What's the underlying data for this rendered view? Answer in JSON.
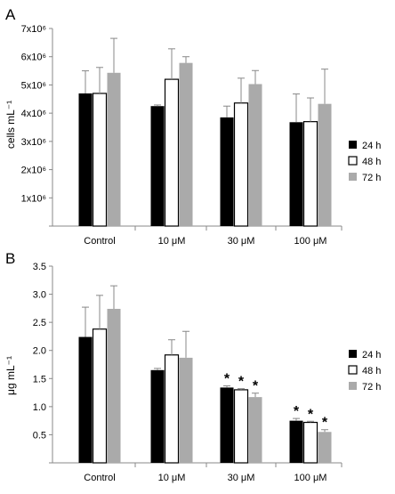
{
  "figure": {
    "panels": [
      {
        "panel_label": "A",
        "ylabel": "cells mL⁻¹",
        "tick_labels": [
          "1x10⁶",
          "2x10⁶",
          "3x10⁶",
          "4x10⁶",
          "5x10⁶",
          "6x10⁶",
          "7x10⁶"
        ],
        "legend": [
          "24 h",
          "48 h",
          "72 h"
        ]
      },
      {
        "panel_label": "B",
        "ylabel": "μg mL⁻¹",
        "tick_labels": [
          "0.5",
          "1.0",
          "1.5",
          "2.0",
          "2.5",
          "3.0",
          "3.5"
        ],
        "legend": [
          "24 h",
          "48 h",
          "72 h"
        ]
      }
    ]
  },
  "chart_data": [
    {
      "type": "bar",
      "title": "",
      "xlabel": "",
      "ylabel": "cells mL⁻¹",
      "categories": [
        "Control",
        "10 μM",
        "30 μM",
        "100 μM"
      ],
      "yticks": [
        0,
        1000000,
        2000000,
        3000000,
        4000000,
        5000000,
        6000000,
        7000000
      ],
      "ylim": [
        0,
        7000000
      ],
      "grid": false,
      "legend_position": "right",
      "series": [
        {
          "name": "24 h",
          "color": "#000000",
          "values": [
            4700000,
            4250000,
            3850000,
            3680000
          ],
          "errors": [
            800000,
            40000,
            400000,
            1000000
          ],
          "significant": [
            false,
            false,
            false,
            false
          ]
        },
        {
          "name": "48 h",
          "color": "#ffffff",
          "values": [
            4700000,
            5200000,
            4360000,
            3700000
          ],
          "errors": [
            920000,
            1080000,
            880000,
            840000
          ],
          "significant": [
            false,
            false,
            false,
            false
          ]
        },
        {
          "name": "72 h",
          "color": "#aaaaaa",
          "values": [
            5430000,
            5780000,
            5030000,
            4330000
          ],
          "errors": [
            1220000,
            220000,
            480000,
            1230000
          ],
          "significant": [
            false,
            false,
            false,
            false
          ]
        }
      ]
    },
    {
      "type": "bar",
      "title": "",
      "xlabel": "",
      "ylabel": "μg mL⁻¹",
      "categories": [
        "Control",
        "10 μM",
        "30 μM",
        "100 μM"
      ],
      "yticks": [
        0,
        0.5,
        1.0,
        1.5,
        2.0,
        2.5,
        3.0,
        3.5
      ],
      "ylim": [
        0,
        3.5
      ],
      "grid": false,
      "legend_position": "right",
      "series": [
        {
          "name": "24 h",
          "color": "#000000",
          "values": [
            2.24,
            1.65,
            1.34,
            0.75
          ],
          "errors": [
            0.53,
            0.03,
            0.03,
            0.04
          ],
          "significant": [
            false,
            false,
            true,
            true
          ]
        },
        {
          "name": "48 h",
          "color": "#ffffff",
          "values": [
            2.38,
            1.92,
            1.3,
            0.72
          ],
          "errors": [
            0.6,
            0.27,
            0.02,
            0.02
          ],
          "significant": [
            false,
            false,
            true,
            true
          ]
        },
        {
          "name": "72 h",
          "color": "#aaaaaa",
          "values": [
            2.74,
            1.87,
            1.17,
            0.55
          ],
          "errors": [
            0.41,
            0.47,
            0.07,
            0.04
          ],
          "significant": [
            false,
            false,
            true,
            true
          ]
        }
      ],
      "annotation_symbol": "*"
    }
  ]
}
